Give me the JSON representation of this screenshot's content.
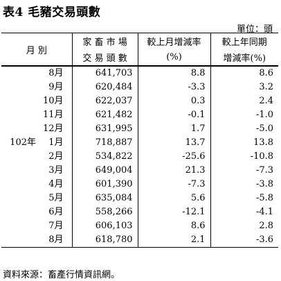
{
  "title": "表4  毛豬交易頭數",
  "unit": "單位：頭",
  "header": {
    "period": "月  別",
    "volume_line1": "家 畜 市 場",
    "volume_line2": "交 易 頭 數",
    "mom_line1": "較上月增減率",
    "mom_line2": "(%)",
    "yoy_line1": "較上年同期",
    "yoy_line2": "增減率(%)"
  },
  "year_label": "102年",
  "rows": [
    {
      "month": "8月",
      "volume": "641,703",
      "mom": "8.8",
      "yoy": "8.6"
    },
    {
      "month": "9月",
      "volume": "620,484",
      "mom": "-3.3",
      "yoy": "3.2"
    },
    {
      "month": "10月",
      "volume": "622,037",
      "mom": "0.3",
      "yoy": "2.4"
    },
    {
      "month": "11月",
      "volume": "621,482",
      "mom": "-0.1",
      "yoy": "-1.0"
    },
    {
      "month": "12月",
      "volume": "631,995",
      "mom": "1.7",
      "yoy": "-5.0"
    },
    {
      "month": "1月",
      "volume": "718,887",
      "mom": "13.7",
      "yoy": "13.8"
    },
    {
      "month": "2月",
      "volume": "534,822",
      "mom": "-25.6",
      "yoy": "-10.8"
    },
    {
      "month": "3月",
      "volume": "649,004",
      "mom": "21.3",
      "yoy": "-7.3"
    },
    {
      "month": "4月",
      "volume": "601,390",
      "mom": "-7.3",
      "yoy": "-3.8"
    },
    {
      "month": "5月",
      "volume": "635,084",
      "mom": "5.6",
      "yoy": "-5.8"
    },
    {
      "month": "6月",
      "volume": "558,266",
      "mom": "-12.1",
      "yoy": "-4.1"
    },
    {
      "month": "7月",
      "volume": "606,103",
      "mom": "8.6",
      "yoy": "2.8"
    },
    {
      "month": "8月",
      "volume": "618,780",
      "mom": "2.1",
      "yoy": "-3.6"
    }
  ],
  "source": "資料來源：畜產行情資訊網。"
}
